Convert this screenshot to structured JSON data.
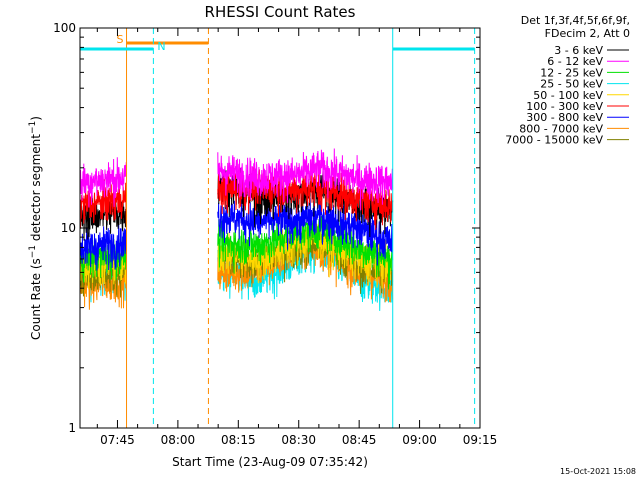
{
  "chart_data": {
    "type": "line",
    "title": "RHESSI Count Rates",
    "xlabel": "Start Time (23-Aug-09 07:35:42)",
    "ylabel_parts": [
      "Count Rate (s",
      "−1",
      " detector segment",
      "−1",
      ")"
    ],
    "x_start": "07:35:42",
    "x_end": "09:15:00",
    "x_ticks": [
      "07:45",
      "08:00",
      "08:15",
      "08:30",
      "08:45",
      "09:00",
      "09:15"
    ],
    "yscale": "log",
    "ylim": [
      1,
      100
    ],
    "y_ticks": [
      "1",
      "10",
      "100"
    ],
    "legend_header": [
      "Det 1f,3f,4f,5f,6f,9f,",
      "FDecim 2, Att 0"
    ],
    "data_gaps": [
      [
        "07:47:15",
        "08:09:50"
      ],
      [
        "08:53:20",
        "09:15:00"
      ]
    ],
    "markers": [
      {
        "label": "S",
        "color": "#ff8c00",
        "time": "07:47:15",
        "end": "08:07:35",
        "line": "solid",
        "end_line": "dashed"
      },
      {
        "label": "N",
        "color": "#00e5ee",
        "time": "07:35:42",
        "end": "07:53:55",
        "line": "solid",
        "end_line": "dashed"
      },
      {
        "label": "",
        "color": "#00e5ee",
        "time": "08:53:20",
        "end": "09:13:40",
        "line": "solid",
        "end_line": "dashed"
      }
    ],
    "series": [
      {
        "name": "3 - 6 keV",
        "color": "#000000",
        "x": [
          "07:36",
          "07:47",
          "08:10",
          "08:20",
          "08:30",
          "08:35",
          "08:45",
          "08:53"
        ],
        "values": [
          11.5,
          12.0,
          17.0,
          14.0,
          14.5,
          16.0,
          13.0,
          12.0
        ]
      },
      {
        "name": "6 - 12 keV",
        "color": "#ff00ff",
        "x": [
          "07:36",
          "07:47",
          "08:10",
          "08:20",
          "08:30",
          "08:35",
          "08:45",
          "08:53"
        ],
        "values": [
          17.0,
          18.0,
          19.5,
          18.0,
          18.5,
          20.0,
          17.5,
          17.0
        ]
      },
      {
        "name": "12 - 25 keV",
        "color": "#00e000",
        "x": [
          "07:36",
          "07:47",
          "08:10",
          "08:20",
          "08:30",
          "08:35",
          "08:45",
          "08:53"
        ],
        "values": [
          7.0,
          7.5,
          8.5,
          8.2,
          9.5,
          10.0,
          8.0,
          7.0
        ]
      },
      {
        "name": "25 - 50 keV",
        "color": "#00e5ee",
        "x": [
          "07:36",
          "07:47",
          "08:10",
          "08:20",
          "08:30",
          "08:35",
          "08:45",
          "08:53"
        ],
        "values": [
          6.0,
          6.0,
          6.5,
          5.5,
          7.0,
          7.8,
          5.5,
          5.0
        ]
      },
      {
        "name": "50 - 100 keV",
        "color": "#ffd700",
        "x": [
          "07:36",
          "07:47",
          "08:10",
          "08:20",
          "08:30",
          "08:35",
          "08:45",
          "08:53"
        ],
        "values": [
          6.5,
          6.5,
          7.5,
          7.0,
          8.5,
          9.0,
          7.0,
          6.5
        ]
      },
      {
        "name": "100 - 300 keV",
        "color": "#ff0000",
        "x": [
          "07:36",
          "07:47",
          "08:10",
          "08:20",
          "08:30",
          "08:35",
          "08:45",
          "08:53"
        ],
        "values": [
          13.0,
          14.0,
          15.5,
          16.0,
          15.5,
          16.0,
          14.0,
          13.0
        ]
      },
      {
        "name": "300 - 800 keV",
        "color": "#0000ff",
        "x": [
          "07:36",
          "07:47",
          "08:10",
          "08:20",
          "08:30",
          "08:35",
          "08:45",
          "08:53"
        ],
        "values": [
          8.0,
          8.5,
          11.5,
          10.8,
          11.0,
          11.5,
          10.0,
          8.5
        ]
      },
      {
        "name": "800 - 7000 keV",
        "color": "#ff8c00",
        "x": [
          "07:36",
          "07:47",
          "08:10",
          "08:20",
          "08:30",
          "08:35",
          "08:45",
          "08:53"
        ],
        "values": [
          5.2,
          5.5,
          6.0,
          6.2,
          7.8,
          8.0,
          6.0,
          5.5
        ]
      },
      {
        "name": "7000 - 15000 keV",
        "color": "#808000",
        "x": [
          "07:36",
          "07:47",
          "08:10",
          "08:20",
          "08:30",
          "08:35",
          "08:45",
          "08:53"
        ],
        "values": [
          6.0,
          6.2,
          7.0,
          7.0,
          8.0,
          8.5,
          6.5,
          6.0
        ]
      }
    ],
    "grid": false,
    "legend_position": "right"
  },
  "footer": {
    "timestamp": "15-Oct-2021 15:08"
  }
}
